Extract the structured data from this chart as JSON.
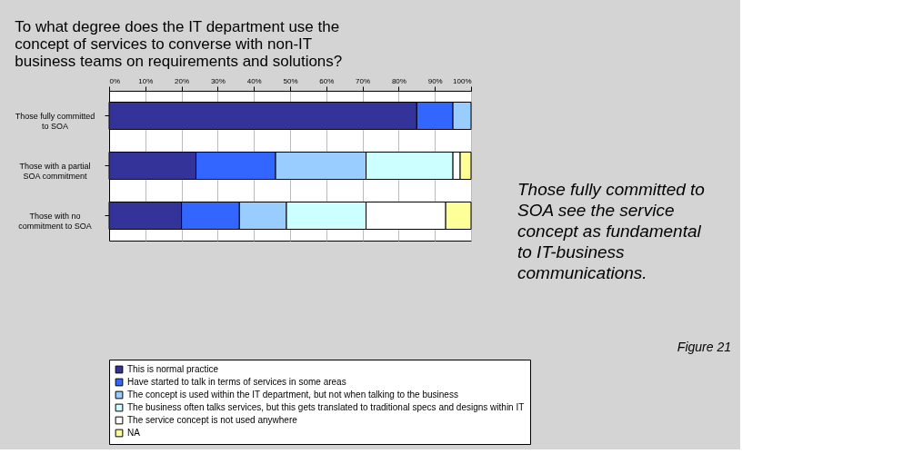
{
  "chart_data": {
    "type": "bar",
    "orientation": "horizontal",
    "stacked": true,
    "title": "To what degree does the IT department use the concept of services to converse with non-IT business teams on requirements and solutions?",
    "categories": [
      "Those fully committed to SOA",
      "Those with a partial SOA commitment",
      "Those with no commitment to SOA"
    ],
    "series": [
      {
        "name": "This is normal practice",
        "color": "#333399",
        "values": [
          85,
          24,
          20
        ]
      },
      {
        "name": "Have started to talk in terms of services in some areas",
        "color": "#3366ff",
        "values": [
          10,
          22,
          16
        ]
      },
      {
        "name": "The concept is used within the IT department, but not when talking to the business",
        "color": "#99ccff",
        "values": [
          5,
          25,
          13
        ]
      },
      {
        "name": "The business often talks services, but this gets translated to traditional specs and designs within IT",
        "color": "#ccffff",
        "values": [
          0,
          24,
          22
        ]
      },
      {
        "name": "The service concept is not used anywhere",
        "color": "#ffffff",
        "values": [
          0,
          2,
          22
        ]
      },
      {
        "name": "NA",
        "color": "#ffff99",
        "values": [
          0,
          3,
          7
        ]
      }
    ],
    "xlim": [
      0,
      100
    ],
    "xticks": [
      {
        "value": 0,
        "label": "0%"
      },
      {
        "value": 10,
        "label": "10%"
      },
      {
        "value": 20,
        "label": "20%"
      },
      {
        "value": 30,
        "label": "30%"
      },
      {
        "value": 40,
        "label": "40%"
      },
      {
        "value": 50,
        "label": "50%"
      },
      {
        "value": 60,
        "label": "60%"
      },
      {
        "value": 70,
        "label": "70%"
      },
      {
        "value": 80,
        "label": "80%"
      },
      {
        "value": 90,
        "label": "90%"
      },
      {
        "value": 100,
        "label": "100%"
      }
    ],
    "grid": "x",
    "legend": "bottom",
    "annotations": [
      "Those fully committed to SOA see the service concept as fundamental to IT-business communications.",
      "Figure 21"
    ]
  }
}
